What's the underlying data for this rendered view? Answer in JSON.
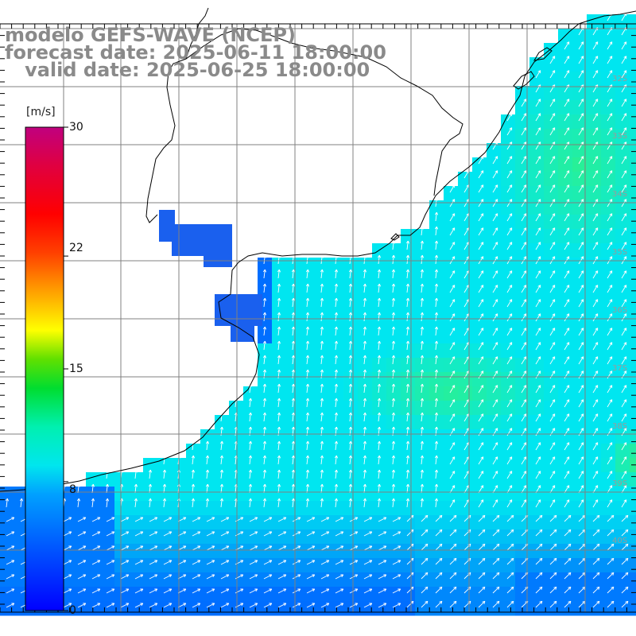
{
  "header": {
    "model_line": "modelo GEFS-WAVE (NCEP)",
    "forecast_line": "forecast date: 2025-06-11 18:00:00",
    "valid_line": "   valid date: 2025-06-25 18:00:00"
  },
  "colorbar": {
    "unit": "[m/s]",
    "ticks": [
      "30",
      "22",
      "15",
      "8",
      "0"
    ],
    "tick_values": [
      30,
      22,
      15,
      8,
      0
    ]
  },
  "latitude_labels": [
    "32S",
    "33S",
    "34S",
    "35S",
    "36S",
    "37S",
    "38S",
    "39S",
    "40S"
  ],
  "colors": {
    "land": "#ffffff",
    "coast": "#000000",
    "grid": "#808080",
    "arrow": "#ffffff",
    "scale_low": "#0000ff",
    "scale_high": "#c0007f"
  }
}
